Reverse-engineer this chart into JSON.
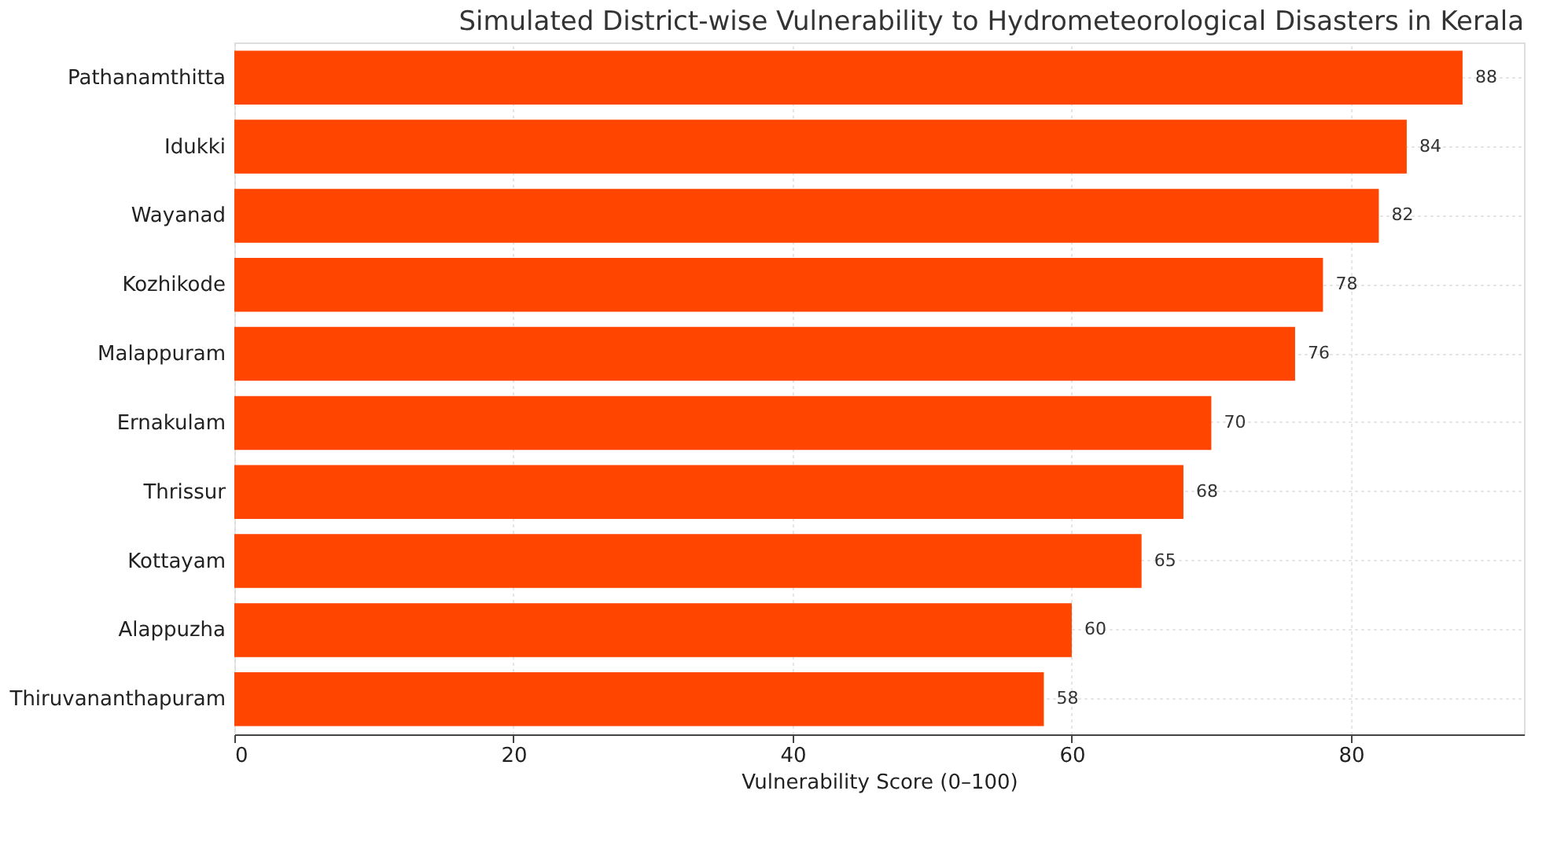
{
  "chart_data": {
    "type": "bar",
    "orientation": "horizontal",
    "title": "Simulated District-wise Vulnerability to Hydrometeorological Disasters in Kerala",
    "xlabel": "Vulnerability Score (0–100)",
    "categories": [
      "Pathanamthitta",
      "Idukki",
      "Wayanad",
      "Kozhikode",
      "Malappuram",
      "Ernakulam",
      "Thrissur",
      "Kottayam",
      "Alappuzha",
      "Thiruvananthapuram"
    ],
    "values": [
      88,
      84,
      82,
      78,
      76,
      70,
      68,
      65,
      60,
      58
    ],
    "color": "#ff4500",
    "xlim": [
      0,
      92.4
    ],
    "xticks": [
      0,
      20,
      40,
      60,
      80
    ],
    "grid": true,
    "data_labels": true
  }
}
